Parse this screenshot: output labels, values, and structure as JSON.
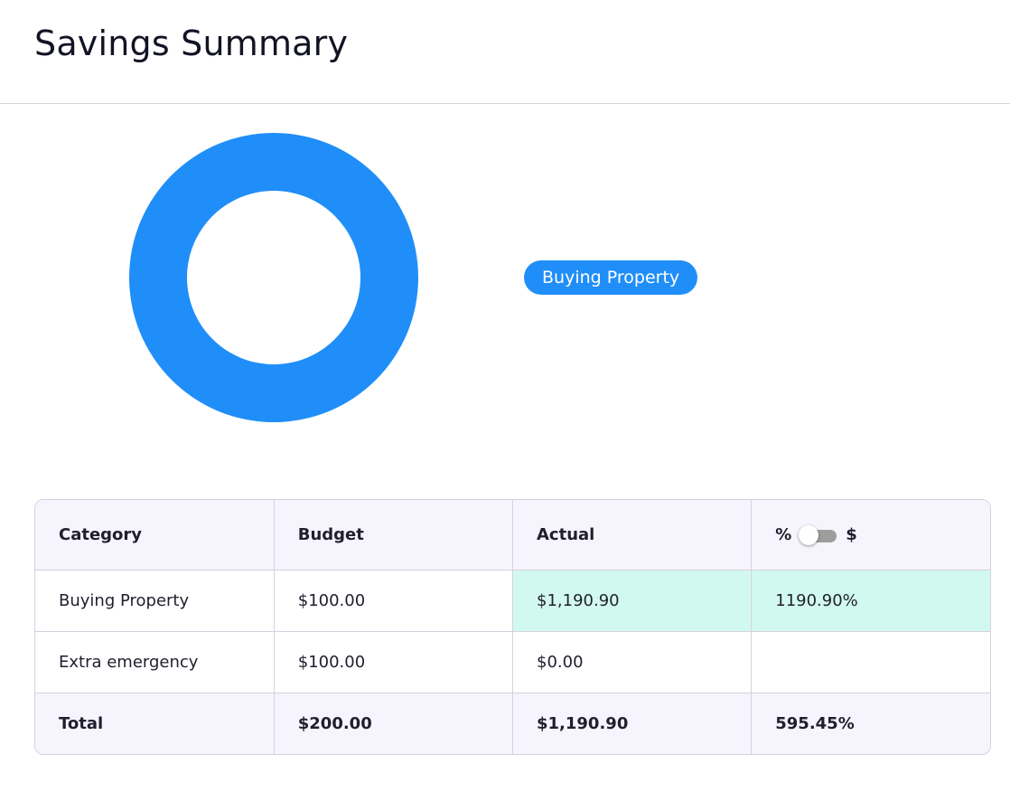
{
  "page": {
    "title": "Savings Summary"
  },
  "chart": {
    "legend_label": "Buying Property",
    "accent_color": "#208ef8"
  },
  "chart_data": {
    "type": "pie",
    "categories": [
      "Buying Property"
    ],
    "values": [
      1190.9
    ],
    "colors": [
      "#208ef8"
    ]
  },
  "table": {
    "headers": {
      "category": "Category",
      "budget": "Budget",
      "actual": "Actual",
      "toggle_left": "%",
      "toggle_right": "$"
    },
    "rows": [
      {
        "category": "Buying Property",
        "budget": "$100.00",
        "actual": "$1,190.90",
        "percent": "1190.90%",
        "highlight": true
      },
      {
        "category": "Extra emergency",
        "budget": "$100.00",
        "actual": "$0.00",
        "percent": "",
        "highlight": false
      }
    ],
    "total": {
      "label": "Total",
      "budget": "$200.00",
      "actual": "$1,190.90",
      "percent": "595.45%"
    },
    "highlight_color": "#d2f9ef",
    "header_bg": "#f6f4fc"
  },
  "toggle": {
    "mode": "percent"
  }
}
